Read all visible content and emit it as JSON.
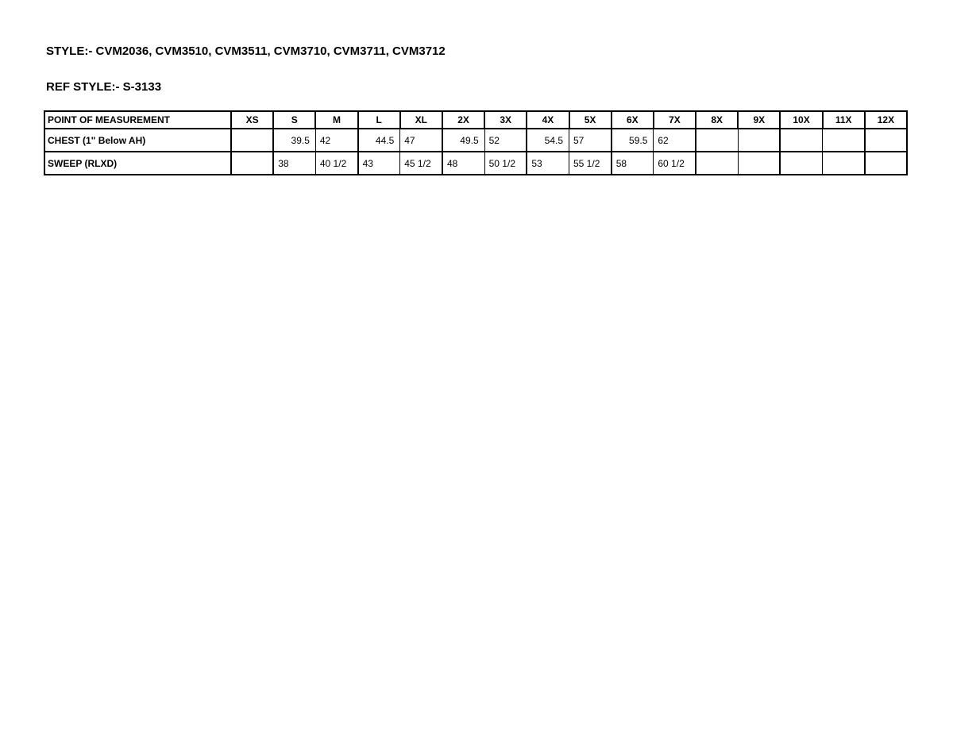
{
  "page": {
    "style_line": "STYLE:- CVM2036, CVM3510, CVM3511, CVM3710, CVM3711, CVM3712",
    "ref_style_line": "REF STYLE:- S-3133"
  },
  "colors": {
    "text": "#000000",
    "border": "#000000",
    "background": "#ffffff"
  },
  "table": {
    "columns": [
      "POINT OF MEASUREMENT",
      "XS",
      "S",
      "M",
      "L",
      "XL",
      "2X",
      "3X",
      "4X",
      "5X",
      "6X",
      "7X",
      "8X",
      "9X",
      "10X",
      "11X",
      "12X"
    ],
    "rows": [
      {
        "label": "CHEST (1\" Below AH)",
        "cells": [
          {
            "value": "",
            "align": "left"
          },
          {
            "value": "39.5",
            "align": "right"
          },
          {
            "value": "42",
            "align": "left"
          },
          {
            "value": "44.5",
            "align": "right"
          },
          {
            "value": "47",
            "align": "left"
          },
          {
            "value": "49.5",
            "align": "right"
          },
          {
            "value": "52",
            "align": "left"
          },
          {
            "value": "54.5",
            "align": "right"
          },
          {
            "value": "57",
            "align": "left"
          },
          {
            "value": "59.5",
            "align": "right"
          },
          {
            "value": "62",
            "align": "left"
          },
          {
            "value": "",
            "align": "left"
          },
          {
            "value": "",
            "align": "left"
          },
          {
            "value": "",
            "align": "left"
          },
          {
            "value": "",
            "align": "left"
          },
          {
            "value": "",
            "align": "left"
          }
        ]
      },
      {
        "label": "SWEEP (RLXD)",
        "cells": [
          {
            "value": "",
            "align": "left"
          },
          {
            "value": "38",
            "align": "left"
          },
          {
            "value": "40 1/2",
            "align": "left"
          },
          {
            "value": "43",
            "align": "left"
          },
          {
            "value": "45 1/2",
            "align": "left"
          },
          {
            "value": "48",
            "align": "left"
          },
          {
            "value": "50 1/2",
            "align": "left"
          },
          {
            "value": "53",
            "align": "left"
          },
          {
            "value": "55 1/2",
            "align": "left"
          },
          {
            "value": "58",
            "align": "left"
          },
          {
            "value": "60 1/2",
            "align": "left"
          },
          {
            "value": "",
            "align": "left"
          },
          {
            "value": "",
            "align": "left"
          },
          {
            "value": "",
            "align": "left"
          },
          {
            "value": "",
            "align": "left"
          },
          {
            "value": "",
            "align": "left"
          }
        ]
      }
    ]
  }
}
